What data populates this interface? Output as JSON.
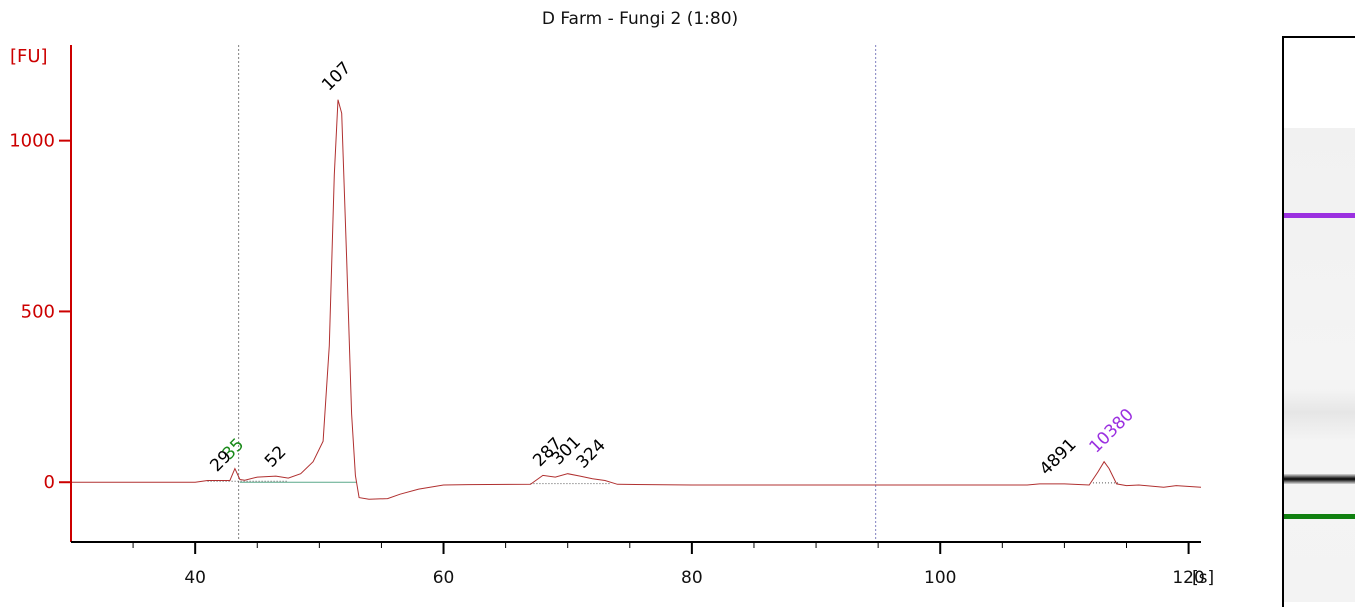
{
  "chart_data": {
    "type": "line",
    "title": "D Farm - Fungi 2 (1:80)",
    "ylabel": "[FU]",
    "xlabel": "[s]",
    "xlim": [
      30,
      121
    ],
    "ylim": [
      -175,
      1280
    ],
    "x_ticks": [
      40,
      60,
      80,
      100,
      120
    ],
    "y_ticks": [
      0,
      500,
      1000
    ],
    "colors": {
      "trace": "#b03030",
      "axis_y": "#cc0000",
      "axis_x": "#000000",
      "marker_lower": "#1a8a1a",
      "marker_upper": "#9b30e0",
      "marker_line_lower": "#808080",
      "marker_line_upper": "#8080c0"
    },
    "marker_lines_x": [
      43.5,
      94.8
    ],
    "series": [
      {
        "values": [
          [
            30,
            0
          ],
          [
            40,
            0
          ],
          [
            41,
            5
          ],
          [
            42,
            5
          ],
          [
            42.8,
            5
          ],
          [
            43.2,
            40
          ],
          [
            43.6,
            8
          ],
          [
            44,
            6
          ],
          [
            45,
            15
          ],
          [
            46.5,
            18
          ],
          [
            47.5,
            12
          ],
          [
            48.5,
            25
          ],
          [
            49.5,
            60
          ],
          [
            50.3,
            120
          ],
          [
            50.8,
            400
          ],
          [
            51.2,
            900
          ],
          [
            51.5,
            1120
          ],
          [
            51.8,
            1080
          ],
          [
            52.2,
            650
          ],
          [
            52.6,
            200
          ],
          [
            52.9,
            20
          ],
          [
            53.2,
            -45
          ],
          [
            54,
            -50
          ],
          [
            55.5,
            -48
          ],
          [
            56.5,
            -35
          ],
          [
            58,
            -20
          ],
          [
            60,
            -8
          ],
          [
            62,
            -7
          ],
          [
            67,
            -6
          ],
          [
            68,
            20
          ],
          [
            69,
            15
          ],
          [
            70,
            25
          ],
          [
            71,
            18
          ],
          [
            72,
            10
          ],
          [
            73,
            5
          ],
          [
            74,
            -6
          ],
          [
            80,
            -8
          ],
          [
            100,
            -8
          ],
          [
            107,
            -8
          ],
          [
            108,
            -5
          ],
          [
            110,
            -5
          ],
          [
            112,
            -8
          ],
          [
            112.7,
            30
          ],
          [
            113.2,
            60
          ],
          [
            113.6,
            40
          ],
          [
            114.2,
            -5
          ],
          [
            115,
            -10
          ],
          [
            116,
            -8
          ],
          [
            118,
            -15
          ],
          [
            119,
            -10
          ],
          [
            121,
            -15
          ],
          [
            123,
            -12
          ],
          [
            126,
            -15
          ],
          [
            130,
            -15
          ],
          [
            131,
            -15
          ]
        ]
      }
    ],
    "peaks": [
      {
        "label": "29",
        "x": 42.4,
        "y": 5,
        "color": "#000000"
      },
      {
        "label": "35",
        "x": 43.4,
        "y": 40,
        "color": "#1a8a1a"
      },
      {
        "label": "52",
        "x": 46.8,
        "y": 18,
        "color": "#000000"
      },
      {
        "label": "107",
        "x": 51.4,
        "y": 1120,
        "color": "#000000"
      },
      {
        "label": "287",
        "x": 68.4,
        "y": 20,
        "color": "#000000"
      },
      {
        "label": "301",
        "x": 69.9,
        "y": 25,
        "color": "#000000"
      },
      {
        "label": "324",
        "x": 71.9,
        "y": 15,
        "color": "#000000"
      },
      {
        "label": "4891",
        "x": 109.2,
        "y": -5,
        "color": "#000000"
      },
      {
        "label": "10380",
        "x": 113.2,
        "y": 60,
        "color": "#9b30e0"
      }
    ]
  },
  "gel": {
    "bands": [
      {
        "name": "upper-marker",
        "color": "#9b30e0",
        "position": 0.31
      },
      {
        "name": "sample-band",
        "color": "#111111",
        "position": 0.772
      },
      {
        "name": "lower-marker",
        "color": "#108010",
        "position": 0.838
      }
    ]
  }
}
